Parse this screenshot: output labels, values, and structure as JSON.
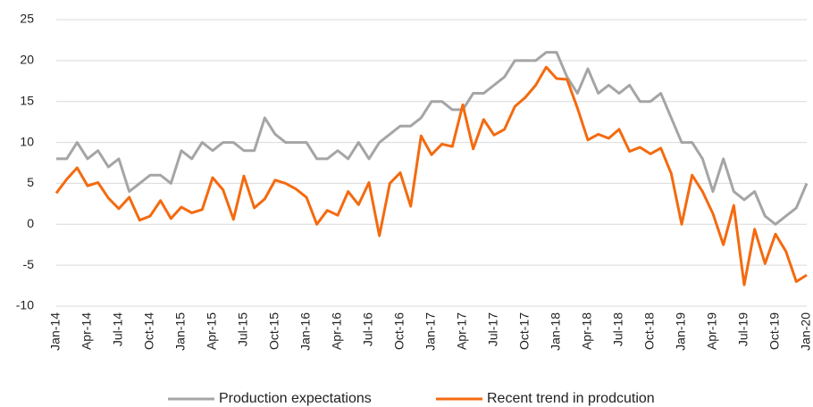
{
  "chart_data": {
    "type": "line",
    "categories": [
      "Jan-14",
      null,
      null,
      "Apr-14",
      null,
      null,
      "Jul-14",
      null,
      null,
      "Oct-14",
      null,
      null,
      "Jan-15",
      null,
      null,
      "Apr-15",
      null,
      null,
      "Jul-15",
      null,
      null,
      "Oct-15",
      null,
      null,
      "Jan-16",
      null,
      null,
      "Apr-16",
      null,
      null,
      "Jul-16",
      null,
      null,
      "Oct-16",
      null,
      null,
      "Jan-17",
      null,
      null,
      "Apr-17",
      null,
      null,
      "Jul-17",
      null,
      null,
      "Oct-17",
      null,
      null,
      "Jan-18",
      null,
      null,
      "Apr-18",
      null,
      null,
      "Jul-18",
      null,
      null,
      "Oct-18",
      null,
      null,
      "Jan-19",
      null,
      null,
      "Apr-19",
      null,
      null,
      "Jul-19",
      null,
      null,
      "Oct-19",
      null,
      null,
      "Jan-20"
    ],
    "series": [
      {
        "name": "Production expectations",
        "color": "#a5a5a5",
        "values": [
          8,
          8,
          10,
          8,
          9,
          7,
          8,
          4,
          5,
          6,
          6,
          5,
          9,
          8,
          10,
          9,
          10,
          10,
          9,
          9,
          13,
          11,
          10,
          10,
          10,
          8,
          8,
          9,
          8,
          10,
          8,
          10,
          11,
          12,
          12,
          13,
          15,
          15,
          14,
          14,
          16,
          16,
          17,
          18,
          20,
          20,
          20,
          21,
          21,
          18,
          16,
          19,
          16,
          17,
          16,
          17,
          15,
          15,
          16,
          13,
          10,
          10,
          8,
          4,
          8,
          4,
          3,
          4,
          1,
          0,
          1,
          2,
          5
        ]
      },
      {
        "name": "Recent trend in prodcution",
        "color": "#f46a0f",
        "values": [
          3.8,
          5.5,
          6.9,
          4.7,
          5.1,
          3.2,
          1.9,
          3.3,
          0.5,
          1.0,
          2.9,
          0.7,
          2.1,
          1.4,
          1.8,
          5.7,
          4.2,
          0.6,
          5.9,
          2.0,
          3.1,
          5.4,
          5.0,
          4.3,
          3.3,
          0.0,
          1.7,
          1.1,
          4.0,
          2.4,
          5.1,
          -1.4,
          5.0,
          6.3,
          2.2,
          10.8,
          8.5,
          9.8,
          9.5,
          14.6,
          9.2,
          12.8,
          10.9,
          11.6,
          14.4,
          15.5,
          17.0,
          19.2,
          17.8,
          17.7,
          14.2,
          10.3,
          11.0,
          10.5,
          11.6,
          8.9,
          9.4,
          8.6,
          9.3,
          6.2,
          0.0,
          6.0,
          4.0,
          1.3,
          -2.5,
          2.3,
          -7.4,
          -0.6,
          -4.8,
          -1.2,
          -3.3,
          -7.0,
          -6.2
        ]
      }
    ],
    "ylim": [
      -10,
      25
    ],
    "yticks": [
      -10,
      -5,
      0,
      5,
      10,
      15,
      20,
      25
    ],
    "grid": true
  }
}
